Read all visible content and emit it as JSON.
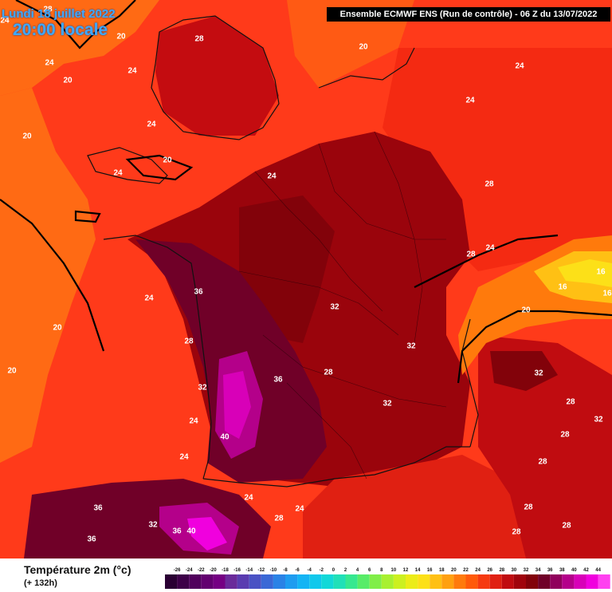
{
  "header": {
    "date_label": "Lundi 18 juillet 2022",
    "time_label": "20:00 locale",
    "model_label": "Ensemble ECMWF ENS  (Run de contrôle)  -  06 Z du 13/07/2022"
  },
  "legend": {
    "title": "Température 2m (°c)",
    "subtitle": "(+ 132h)",
    "ticks": [
      "-26",
      "-24",
      "-22",
      "-20",
      "-18",
      "-16",
      "-14",
      "-12",
      "-10",
      "-8",
      "-6",
      "-4",
      "-2",
      "0",
      "2",
      "4",
      "6",
      "8",
      "10",
      "12",
      "14",
      "16",
      "18",
      "20",
      "22",
      "24",
      "26",
      "28",
      "30",
      "32",
      "34",
      "36",
      "38",
      "40",
      "42",
      "44"
    ],
    "colors": [
      "#2a0033",
      "#3d0048",
      "#50005c",
      "#630070",
      "#750083",
      "#6a2a9a",
      "#5a3cb0",
      "#4a52c4",
      "#3a68d6",
      "#2a82e6",
      "#1e9cf0",
      "#14b4f4",
      "#10c8ec",
      "#12d8d8",
      "#20e0b8",
      "#36e890",
      "#58ec68",
      "#80ee48",
      "#a8f030",
      "#ccf020",
      "#ecec18",
      "#fce018",
      "#ffc014",
      "#ffa010",
      "#ff7a0c",
      "#ff5a0a",
      "#f63a10",
      "#e02012",
      "#c00c10",
      "#a0040c",
      "#82020a",
      "#700028",
      "#90005c",
      "#b4008a",
      "#d800b8",
      "#f000de",
      "#ff40f0"
    ]
  },
  "map_labels": [
    {
      "text": "28"
    },
    {
      "text": "24"
    },
    {
      "text": "20"
    },
    {
      "text": "28"
    },
    {
      "text": "24"
    },
    {
      "text": "20"
    },
    {
      "text": "24"
    },
    {
      "text": "20"
    },
    {
      "text": "24"
    },
    {
      "text": "20"
    },
    {
      "text": "20"
    },
    {
      "text": "24"
    },
    {
      "text": "24"
    },
    {
      "text": "24"
    },
    {
      "text": "28"
    },
    {
      "text": "24"
    },
    {
      "text": "28"
    },
    {
      "text": "24"
    },
    {
      "text": "20"
    },
    {
      "text": "16"
    },
    {
      "text": "16"
    },
    {
      "text": "16"
    },
    {
      "text": "36"
    },
    {
      "text": "24"
    },
    {
      "text": "20"
    },
    {
      "text": "32"
    },
    {
      "text": "28"
    },
    {
      "text": "32"
    },
    {
      "text": "20"
    },
    {
      "text": "36"
    },
    {
      "text": "28"
    },
    {
      "text": "32"
    },
    {
      "text": "32"
    },
    {
      "text": "32"
    },
    {
      "text": "28"
    },
    {
      "text": "24"
    },
    {
      "text": "40"
    },
    {
      "text": "32"
    },
    {
      "text": "28"
    },
    {
      "text": "24"
    },
    {
      "text": "28"
    },
    {
      "text": "24"
    },
    {
      "text": "24"
    },
    {
      "text": "28"
    },
    {
      "text": "36"
    },
    {
      "text": "32"
    },
    {
      "text": "36"
    },
    {
      "text": "40"
    },
    {
      "text": "36"
    },
    {
      "text": "28"
    },
    {
      "text": "28"
    },
    {
      "text": "28"
    }
  ]
}
